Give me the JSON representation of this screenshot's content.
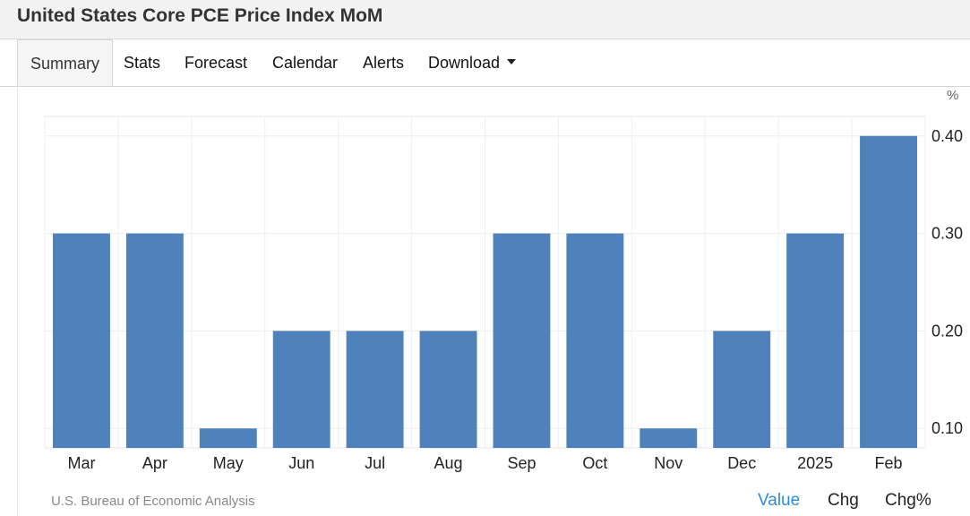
{
  "title": "United States Core PCE Price Index MoM",
  "tabs": [
    {
      "label": "Summary",
      "active": true
    },
    {
      "label": "Stats"
    },
    {
      "label": "Forecast"
    },
    {
      "label": "Calendar"
    },
    {
      "label": "Alerts"
    },
    {
      "label": "Download",
      "dropdown": true
    }
  ],
  "chart_data": {
    "type": "bar",
    "categories": [
      "Mar",
      "Apr",
      "May",
      "Jun",
      "Jul",
      "Aug",
      "Sep",
      "Oct",
      "Nov",
      "Dec",
      "2025",
      "Feb"
    ],
    "values": [
      0.3,
      0.3,
      0.1,
      0.2,
      0.2,
      0.2,
      0.3,
      0.3,
      0.1,
      0.2,
      0.3,
      0.4
    ],
    "unit": "%",
    "yticks": [
      "0.10",
      "0.20",
      "0.30",
      "0.40"
    ],
    "ylim": [
      0.08,
      0.42
    ],
    "bar_color": "#4f81bd",
    "grid": true,
    "yaxis_position": "right"
  },
  "source": "U.S. Bureau of Economic Analysis",
  "view_toggle": [
    {
      "label": "Value",
      "active": true
    },
    {
      "label": "Chg"
    },
    {
      "label": "Chg%"
    }
  ]
}
